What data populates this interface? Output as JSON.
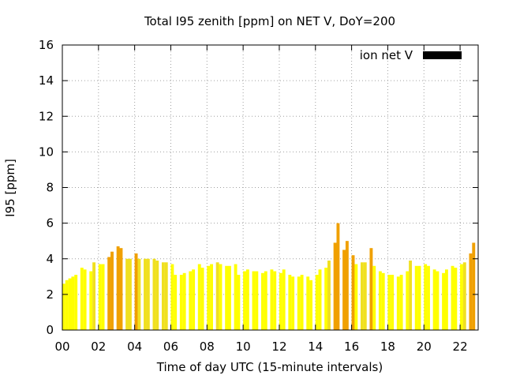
{
  "chart_data": {
    "type": "bar",
    "title": "Total I95 zenith [ppm] on NET V, DoY=200",
    "xlabel": "Time of day UTC (15-minute intervals)",
    "ylabel": "I95 [ppm]",
    "xlim": [
      0,
      23
    ],
    "ylim": [
      0,
      16
    ],
    "xticks": [
      0,
      2,
      4,
      6,
      8,
      10,
      12,
      14,
      16,
      18,
      20,
      22
    ],
    "xtick_labels": [
      "00",
      "02",
      "04",
      "06",
      "08",
      "10",
      "12",
      "14",
      "16",
      "18",
      "20",
      "22"
    ],
    "yticks": [
      0,
      2,
      4,
      6,
      8,
      10,
      12,
      14,
      16
    ],
    "ytick_labels": [
      "0",
      "2",
      "4",
      "6",
      "8",
      "10",
      "12",
      "14",
      "16"
    ],
    "grid": true,
    "legend": {
      "label": "ion net V",
      "position": "top-right",
      "color": "#000000"
    },
    "colors": {
      "low": "#ffff00",
      "mid": "#f0e020",
      "high": "#f0a000"
    },
    "bar_width_hours": 0.17,
    "series": [
      {
        "x": [
          0.083,
          0.25,
          0.417,
          0.583,
          0.75,
          1.083,
          1.25,
          1.583,
          1.75,
          2.083,
          2.25,
          2.583,
          2.75,
          3.083,
          3.25,
          3.583,
          3.75,
          4.083,
          4.25,
          4.583,
          4.75,
          5.083,
          5.25,
          5.583,
          5.75,
          6.083,
          6.25,
          6.583,
          6.75,
          7.083,
          7.25,
          7.583,
          7.75,
          8.083,
          8.25,
          8.583,
          8.75,
          9.083,
          9.25,
          9.583,
          9.75,
          10.083,
          10.25,
          10.583,
          10.75,
          11.083,
          11.25,
          11.583,
          11.75,
          12.083,
          12.25,
          12.583,
          12.75,
          13.083,
          13.25,
          13.583,
          13.75,
          14.083,
          14.25,
          14.583,
          14.75,
          15.083,
          15.25,
          15.583,
          15.75,
          16.083,
          16.25,
          16.583,
          16.75,
          17.083,
          17.25,
          17.583,
          17.75,
          18.083,
          18.25,
          18.583,
          18.75,
          19.083,
          19.25,
          19.583,
          19.75,
          20.083,
          20.25,
          20.583,
          20.75,
          21.083,
          21.25,
          21.583,
          21.75,
          22.083,
          22.25,
          22.583,
          22.75
        ],
        "values": [
          2.6,
          2.8,
          2.9,
          3.0,
          3.1,
          3.5,
          3.4,
          3.3,
          3.8,
          3.7,
          3.7,
          4.1,
          4.4,
          4.7,
          4.6,
          4.0,
          4.0,
          4.3,
          4.0,
          4.0,
          4.0,
          4.0,
          3.9,
          3.8,
          3.8,
          3.7,
          3.1,
          3.1,
          3.2,
          3.3,
          3.4,
          3.7,
          3.5,
          3.6,
          3.7,
          3.8,
          3.7,
          3.6,
          3.6,
          3.7,
          3.1,
          3.3,
          3.4,
          3.3,
          3.3,
          3.2,
          3.3,
          3.4,
          3.3,
          3.2,
          3.4,
          3.1,
          3.0,
          3.0,
          3.1,
          3.0,
          2.8,
          3.1,
          3.4,
          3.5,
          3.9,
          4.9,
          6.0,
          4.5,
          5.0,
          4.2,
          3.7,
          3.8,
          3.8,
          4.6,
          3.6,
          3.3,
          3.2,
          3.1,
          3.1,
          3.0,
          3.1,
          3.3,
          3.9,
          3.6,
          3.6,
          3.7,
          3.6,
          3.4,
          3.3,
          3.2,
          3.4,
          3.6,
          3.5,
          3.7,
          3.8,
          4.3,
          4.9
        ]
      }
    ]
  }
}
